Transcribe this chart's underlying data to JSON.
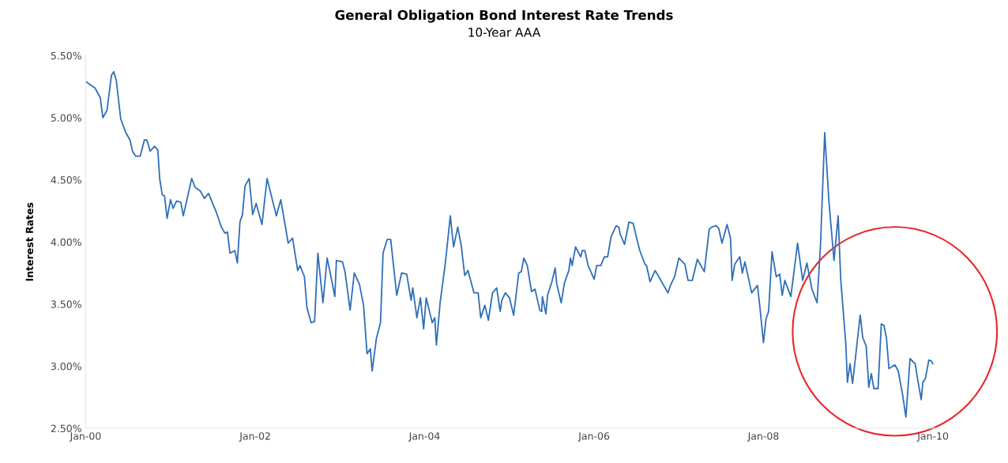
{
  "chart_data": {
    "type": "line",
    "title": "General Obligation Bond Interest Rate Trends",
    "subtitle": "10-Year AAA",
    "ylabel": "Interest Rates",
    "xlim": [
      "2000-01-01",
      "2010-01-20"
    ],
    "xticks": [
      {
        "value": "2000-01-01",
        "label": "Jan-00"
      },
      {
        "value": "2002-01-01",
        "label": "Jan-02"
      },
      {
        "value": "2004-01-01",
        "label": "Jan-04"
      },
      {
        "value": "2006-01-01",
        "label": "Jan-06"
      },
      {
        "value": "2008-01-01",
        "label": "Jan-08"
      },
      {
        "value": "2010-01-01",
        "label": "Jan-10"
      }
    ],
    "ylim": [
      2.5,
      5.5
    ],
    "yticks": [
      {
        "value": 2.5,
        "label": "2.50%"
      },
      {
        "value": 3.0,
        "label": "3.00%"
      },
      {
        "value": 3.5,
        "label": "3.50%"
      },
      {
        "value": 4.0,
        "label": "4.00%"
      },
      {
        "value": 4.5,
        "label": "4.50%"
      },
      {
        "value": 5.0,
        "label": "5.00%"
      },
      {
        "value": 5.5,
        "label": "5.50%"
      }
    ],
    "grid": false,
    "legend": false,
    "marker": "none",
    "line_style": "solid",
    "series": [
      {
        "color": "#2f6fb7",
        "x": [
          "2000-01-01",
          "2000-02-10",
          "2000-03-04",
          "2000-03-15",
          "2000-04-02",
          "2000-04-21",
          "2000-05-01",
          "2000-05-12",
          "2000-05-31",
          "2000-06-22",
          "2000-07-10",
          "2000-07-21",
          "2000-08-04",
          "2000-08-23",
          "2000-09-10",
          "2000-09-21",
          "2000-10-05",
          "2000-10-24",
          "2000-11-07",
          "2000-11-15",
          "2000-11-26",
          "2000-12-06",
          "2000-12-17",
          "2001-01-01",
          "2001-01-12",
          "2001-01-27",
          "2001-02-14",
          "2001-02-25",
          "2001-03-15",
          "2001-04-02",
          "2001-04-17",
          "2001-05-09",
          "2001-05-27",
          "2001-06-14",
          "2001-06-29",
          "2001-07-17",
          "2001-08-08",
          "2001-08-23",
          "2001-09-03",
          "2001-09-14",
          "2001-10-05",
          "2001-10-16",
          "2001-10-27",
          "2001-11-07",
          "2001-11-18",
          "2001-12-06",
          "2001-12-21",
          "2002-01-05",
          "2002-01-30",
          "2002-02-21",
          "2002-04-02",
          "2002-04-21",
          "2002-05-23",
          "2002-06-11",
          "2002-07-03",
          "2002-07-13",
          "2002-08-01",
          "2002-08-12",
          "2002-08-30",
          "2002-09-14",
          "2002-09-28",
          "2002-10-20",
          "2002-11-07",
          "2002-11-18",
          "2002-12-10",
          "2002-12-17",
          "2003-01-12",
          "2003-01-23",
          "2003-02-14",
          "2003-03-04",
          "2003-03-26",
          "2003-04-13",
          "2003-04-28",
          "2003-05-12",
          "2003-05-20",
          "2003-06-07",
          "2003-06-25",
          "2003-07-06",
          "2003-07-24",
          "2003-08-08",
          "2003-09-03",
          "2003-09-24",
          "2003-10-16",
          "2003-11-04",
          "2003-11-11",
          "2003-11-29",
          "2003-12-14",
          "2003-12-28",
          "2004-01-08",
          "2004-02-03",
          "2004-02-14",
          "2004-02-21",
          "2004-03-08",
          "2004-03-30",
          "2004-04-21",
          "2004-05-05",
          "2004-05-23",
          "2004-06-07",
          "2004-06-22",
          "2004-07-06",
          "2004-08-01",
          "2004-08-19",
          "2004-08-30",
          "2004-09-17",
          "2004-10-02",
          "2004-10-20",
          "2004-11-07",
          "2004-11-22",
          "2004-11-29",
          "2004-12-14",
          "2005-01-01",
          "2005-01-19",
          "2005-02-10",
          "2005-02-21",
          "2005-03-04",
          "2005-03-19",
          "2005-04-06",
          "2005-04-21",
          "2005-05-12",
          "2005-05-20",
          "2005-05-23",
          "2005-06-07",
          "2005-06-14",
          "2005-07-03",
          "2005-07-17",
          "2005-07-24",
          "2005-08-12",
          "2005-08-26",
          "2005-09-14",
          "2005-09-21",
          "2005-09-28",
          "2005-10-13",
          "2005-11-04",
          "2005-11-11",
          "2005-11-22",
          "2005-12-06",
          "2006-01-01",
          "2006-01-12",
          "2006-01-30",
          "2006-02-14",
          "2006-02-28",
          "2006-03-15",
          "2006-04-06",
          "2006-04-17",
          "2006-04-24",
          "2006-05-12",
          "2006-05-31",
          "2006-06-18",
          "2006-07-06",
          "2006-07-17",
          "2006-08-08",
          "2006-08-15",
          "2006-08-30",
          "2006-09-21",
          "2006-10-16",
          "2006-11-15",
          "2006-11-26",
          "2006-12-14",
          "2007-01-01",
          "2007-01-27",
          "2007-02-10",
          "2007-02-28",
          "2007-03-22",
          "2007-04-21",
          "2007-05-12",
          "2007-05-23",
          "2007-06-11",
          "2007-06-22",
          "2007-07-06",
          "2007-07-28",
          "2007-08-12",
          "2007-08-19",
          "2007-08-30",
          "2007-09-21",
          "2007-10-02",
          "2007-10-13",
          "2007-11-11",
          "2007-12-06",
          "2007-12-17",
          "2008-01-01",
          "2008-01-12",
          "2008-01-23",
          "2008-02-07",
          "2008-02-25",
          "2008-03-11",
          "2008-03-22",
          "2008-04-02",
          "2008-04-28",
          "2008-05-27",
          "2008-06-18",
          "2008-07-06",
          "2008-07-28",
          "2008-08-19",
          "2008-09-03",
          "2008-09-21",
          "2008-10-09",
          "2008-10-31",
          "2008-11-18",
          "2008-11-29",
          "2008-12-21",
          "2008-12-28",
          "2009-01-08",
          "2009-01-19",
          "2009-02-21",
          "2009-03-04",
          "2009-03-19",
          "2009-03-30",
          "2009-04-10",
          "2009-04-21",
          "2009-05-09",
          "2009-05-23",
          "2009-06-03",
          "2009-06-14",
          "2009-06-25",
          "2009-07-21",
          "2009-08-04",
          "2009-08-23",
          "2009-09-06",
          "2009-09-24",
          "2009-10-16",
          "2009-10-27",
          "2009-11-11",
          "2009-11-18",
          "2009-11-29",
          "2009-12-14",
          "2009-12-25",
          "2009-12-31"
        ],
        "values": [
          5.29,
          5.24,
          5.16,
          5.0,
          5.06,
          5.34,
          5.37,
          5.3,
          4.99,
          4.88,
          4.82,
          4.73,
          4.69,
          4.69,
          4.82,
          4.82,
          4.73,
          4.77,
          4.74,
          4.51,
          4.38,
          4.37,
          4.19,
          4.34,
          4.27,
          4.33,
          4.32,
          4.21,
          4.36,
          4.51,
          4.44,
          4.41,
          4.35,
          4.39,
          4.32,
          4.24,
          4.12,
          4.07,
          4.08,
          3.91,
          3.93,
          3.83,
          4.16,
          4.22,
          4.45,
          4.51,
          4.22,
          4.31,
          4.14,
          4.51,
          4.21,
          4.34,
          3.99,
          4.03,
          3.77,
          3.81,
          3.72,
          3.47,
          3.35,
          3.36,
          3.91,
          3.51,
          3.87,
          3.77,
          3.56,
          3.85,
          3.84,
          3.76,
          3.45,
          3.75,
          3.66,
          3.49,
          3.1,
          3.14,
          2.96,
          3.22,
          3.35,
          3.91,
          4.02,
          4.02,
          3.57,
          3.75,
          3.74,
          3.53,
          3.63,
          3.39,
          3.55,
          3.3,
          3.55,
          3.35,
          3.39,
          3.17,
          3.51,
          3.82,
          4.21,
          3.96,
          4.12,
          3.97,
          3.73,
          3.77,
          3.59,
          3.59,
          3.39,
          3.49,
          3.37,
          3.59,
          3.63,
          3.44,
          3.53,
          3.59,
          3.55,
          3.41,
          3.75,
          3.76,
          3.87,
          3.81,
          3.6,
          3.62,
          3.45,
          3.44,
          3.56,
          3.42,
          3.57,
          3.68,
          3.79,
          3.66,
          3.51,
          3.67,
          3.77,
          3.87,
          3.81,
          3.96,
          3.88,
          3.93,
          3.93,
          3.81,
          3.7,
          3.81,
          3.81,
          3.88,
          3.88,
          4.04,
          4.13,
          4.12,
          4.06,
          3.98,
          4.16,
          4.15,
          4.01,
          3.93,
          3.82,
          3.81,
          3.68,
          3.77,
          3.69,
          3.59,
          3.65,
          3.72,
          3.87,
          3.82,
          3.69,
          3.69,
          3.86,
          3.76,
          4.1,
          4.12,
          4.13,
          4.11,
          3.99,
          4.14,
          4.03,
          3.69,
          3.82,
          3.88,
          3.75,
          3.84,
          3.59,
          3.65,
          3.47,
          3.19,
          3.38,
          3.44,
          3.92,
          3.72,
          3.74,
          3.57,
          3.69,
          3.56,
          3.99,
          3.69,
          3.83,
          3.62,
          3.51,
          3.98,
          4.88,
          4.33,
          3.85,
          4.21,
          3.7,
          3.18,
          2.87,
          3.02,
          2.86,
          3.41,
          3.23,
          3.16,
          2.83,
          2.94,
          2.82,
          2.82,
          3.34,
          3.33,
          3.23,
          2.98,
          3.01,
          2.96,
          2.77,
          2.59,
          3.06,
          3.02,
          2.89,
          2.73,
          2.87,
          2.9,
          3.05,
          3.04,
          3.02
        ]
      }
    ]
  }
}
